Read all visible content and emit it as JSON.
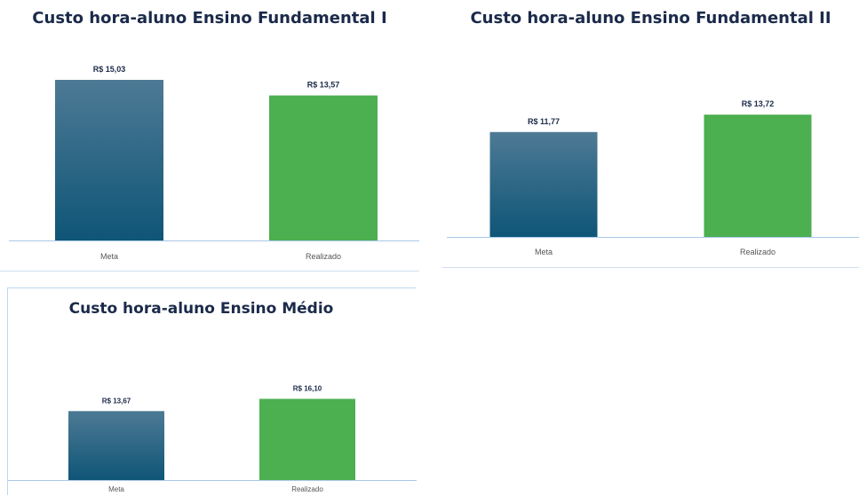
{
  "colors": {
    "meta_top": "#4d7a95",
    "meta_bottom": "#0f5577",
    "realizado": "#4caf50",
    "axis": "#a9c8e8",
    "title": "#1b2a4a"
  },
  "chart_data": [
    {
      "type": "bar",
      "title": "Custo hora-aluno  Ensino Fundamental I",
      "categories": [
        "Meta",
        "Realizado"
      ],
      "values": [
        15.03,
        13.57
      ],
      "data_labels": [
        "R$ 15,03",
        "R$ 13,57"
      ],
      "xlabel": "",
      "ylabel": "",
      "ylim": [
        0,
        15.03
      ],
      "grid": false,
      "legend": "none"
    },
    {
      "type": "bar",
      "title": "Custo hora-aluno  Ensino Fundamental II",
      "categories": [
        "Meta",
        "Realizado"
      ],
      "values": [
        11.77,
        13.72
      ],
      "data_labels": [
        "R$ 11,77",
        "R$ 13,72"
      ],
      "xlabel": "",
      "ylabel": "",
      "ylim": [
        0,
        23.3
      ],
      "grid": false,
      "legend": "none"
    },
    {
      "type": "bar",
      "title": "Custo hora-aluno  Ensino Médio",
      "categories": [
        "Meta",
        "Realizado"
      ],
      "values": [
        13.67,
        16.1
      ],
      "data_labels": [
        "R$ 13,67",
        "R$ 16,10"
      ],
      "xlabel": "",
      "ylabel": "",
      "ylim": [
        0,
        36.6
      ],
      "grid": false,
      "legend": "none"
    }
  ]
}
